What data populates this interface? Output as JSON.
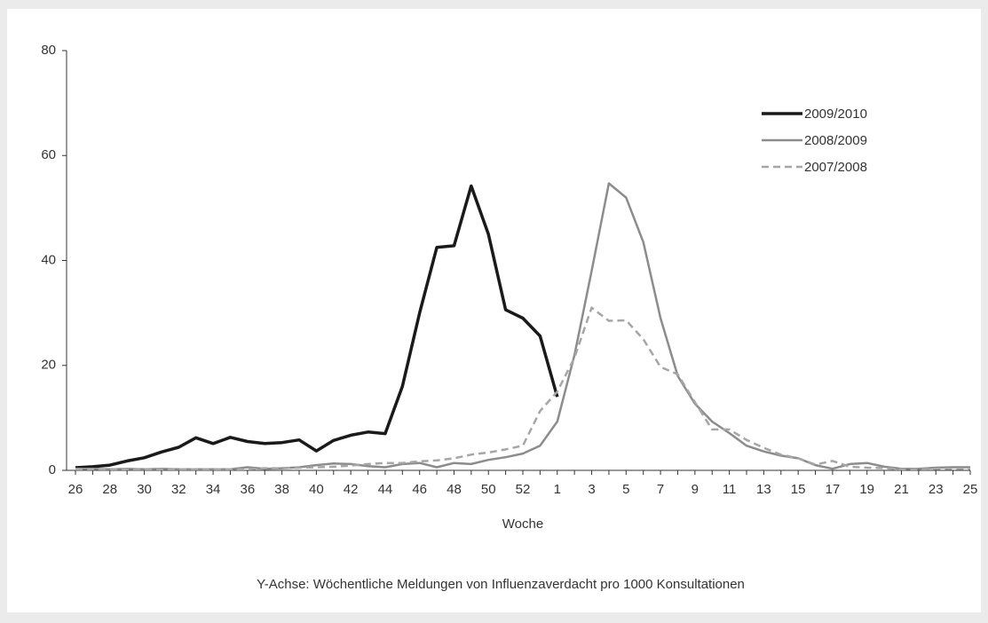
{
  "chart_data": {
    "type": "line",
    "x_label": "Woche",
    "caption": "Y-Achse: Wöchentliche Meldungen von Influenzaverdacht pro 1000 Konsultationen",
    "categories": [
      "26",
      null,
      "28",
      null,
      "30",
      null,
      "32",
      null,
      "34",
      null,
      "36",
      null,
      "38",
      null,
      "40",
      null,
      "42",
      null,
      "44",
      null,
      "46",
      null,
      "48",
      null,
      "50",
      null,
      "52",
      null,
      "1",
      null,
      "3",
      null,
      "5",
      null,
      "7",
      null,
      "9",
      null,
      "11",
      null,
      "13",
      null,
      "15",
      null,
      "17",
      null,
      "19",
      null,
      "21",
      null,
      "23",
      null,
      "25"
    ],
    "ylim": [
      0,
      80
    ],
    "yticks": [
      0,
      20,
      40,
      60,
      80
    ],
    "legend": "top-right",
    "series": [
      {
        "name": "2009/2010",
        "color": "#1a1a1a",
        "dashed": false,
        "values": [
          0.5,
          0.7,
          1.0,
          1.8,
          2.4,
          3.5,
          4.4,
          6.2,
          5.1,
          6.3,
          5.5,
          5.1,
          5.3,
          5.8,
          3.7,
          5.7,
          6.7,
          7.3,
          7.0,
          16,
          30,
          42.5,
          42.8,
          54.2,
          45,
          30.6,
          29,
          25.6,
          14,
          null,
          null,
          null,
          null,
          null,
          null,
          null,
          null,
          null,
          null,
          null,
          null,
          null,
          null,
          null,
          null,
          null,
          null,
          null,
          null,
          null,
          null,
          null,
          null
        ]
      },
      {
        "name": "2008/2009",
        "color": "#8c8c8c",
        "dashed": false,
        "values": [
          0.3,
          0.3,
          0.2,
          0.3,
          0.2,
          0.3,
          0.2,
          0.2,
          0.2,
          0.2,
          0.6,
          0.3,
          0.4,
          0.6,
          1.0,
          1.3,
          1.2,
          0.8,
          0.6,
          1.2,
          1.4,
          0.6,
          1.4,
          1.2,
          2.0,
          2.5,
          3.2,
          4.7,
          9.3,
          22,
          38,
          54.7,
          52,
          43.5,
          29,
          18,
          12.7,
          9.3,
          7.1,
          4.7,
          3.6,
          2.8,
          2.3,
          1.0,
          0.3,
          1.2,
          1.4,
          0.7,
          0.3,
          0.3,
          0.5,
          0.6,
          0.6
        ]
      },
      {
        "name": "2007/2008",
        "color": "#a6a6a6",
        "dashed": true,
        "values": [
          0.2,
          0.2,
          0.2,
          0.2,
          0.2,
          0.2,
          0.2,
          0.2,
          0.2,
          0.2,
          0.2,
          0.4,
          0.4,
          0.5,
          0.6,
          0.7,
          0.9,
          1.2,
          1.4,
          1.4,
          1.7,
          1.9,
          2.3,
          3.0,
          3.4,
          4.0,
          4.7,
          11.3,
          15,
          21.5,
          31,
          28.5,
          28.6,
          25,
          19.7,
          18.3,
          13,
          7.8,
          7.8,
          5.8,
          4.3,
          3.0,
          2.3,
          1.1,
          1.8,
          0.7,
          0.5,
          0.4,
          0.2,
          0.2,
          0.3,
          0.3,
          0.3
        ]
      }
    ]
  }
}
